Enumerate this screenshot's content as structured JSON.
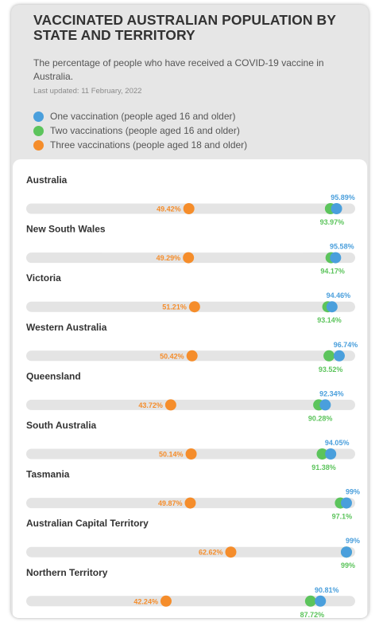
{
  "header": {
    "title": "VACCINATED AUSTRALIAN POPULATION BY STATE AND TERRITORY",
    "subtitle": "The percentage of people who have received a COVID-19 vaccine in Australia.",
    "updated": "Last updated: 11 February, 2022"
  },
  "colors": {
    "one": "#4a9fdc",
    "two": "#5cc45c",
    "three": "#f58d2b",
    "track": "#e4e4e4"
  },
  "legend": [
    {
      "label": "One vaccination (people aged 16 and older)",
      "color": "#4a9fdc"
    },
    {
      "label": "Two vaccinations (people aged 16 and older)",
      "color": "#5cc45c"
    },
    {
      "label": "Three vaccinations (people aged 18 and older)",
      "color": "#f58d2b"
    }
  ],
  "chart_data": {
    "type": "dot-plot",
    "xlim": [
      0,
      100
    ],
    "categories": [
      "Australia",
      "New South Wales",
      "Victoria",
      "Western Australia",
      "Queensland",
      "South Australia",
      "Tasmania",
      "Australian Capital Territory",
      "Northern Territory"
    ],
    "series": [
      {
        "name": "One vaccination (people aged 16 and older)",
        "color": "#4a9fdc",
        "values": [
          95.89,
          95.58,
          94.46,
          96.74,
          92.34,
          94.05,
          99,
          99,
          90.81
        ],
        "labels": [
          "95.89%",
          "95.58%",
          "94.46%",
          "96.74%",
          "92.34%",
          "94.05%",
          "99%",
          "99%",
          "90.81%"
        ]
      },
      {
        "name": "Two vaccinations (people aged 16 and older)",
        "color": "#5cc45c",
        "values": [
          93.97,
          94.17,
          93.14,
          93.52,
          90.28,
          91.38,
          97.1,
          99,
          87.72
        ],
        "labels": [
          "93.97%",
          "94.17%",
          "93.14%",
          "93.52%",
          "90.28%",
          "91.38%",
          "97.1%",
          "99%",
          "87.72%"
        ]
      },
      {
        "name": "Three vaccinations (people aged 18 and older)",
        "color": "#f58d2b",
        "values": [
          49.42,
          49.29,
          51.21,
          50.42,
          43.72,
          50.14,
          49.87,
          62.62,
          42.24
        ],
        "labels": [
          "49.42%",
          "49.29%",
          "51.21%",
          "50.42%",
          "43.72%",
          "50.14%",
          "49.87%",
          "62.62%",
          "42.24%"
        ]
      }
    ]
  }
}
